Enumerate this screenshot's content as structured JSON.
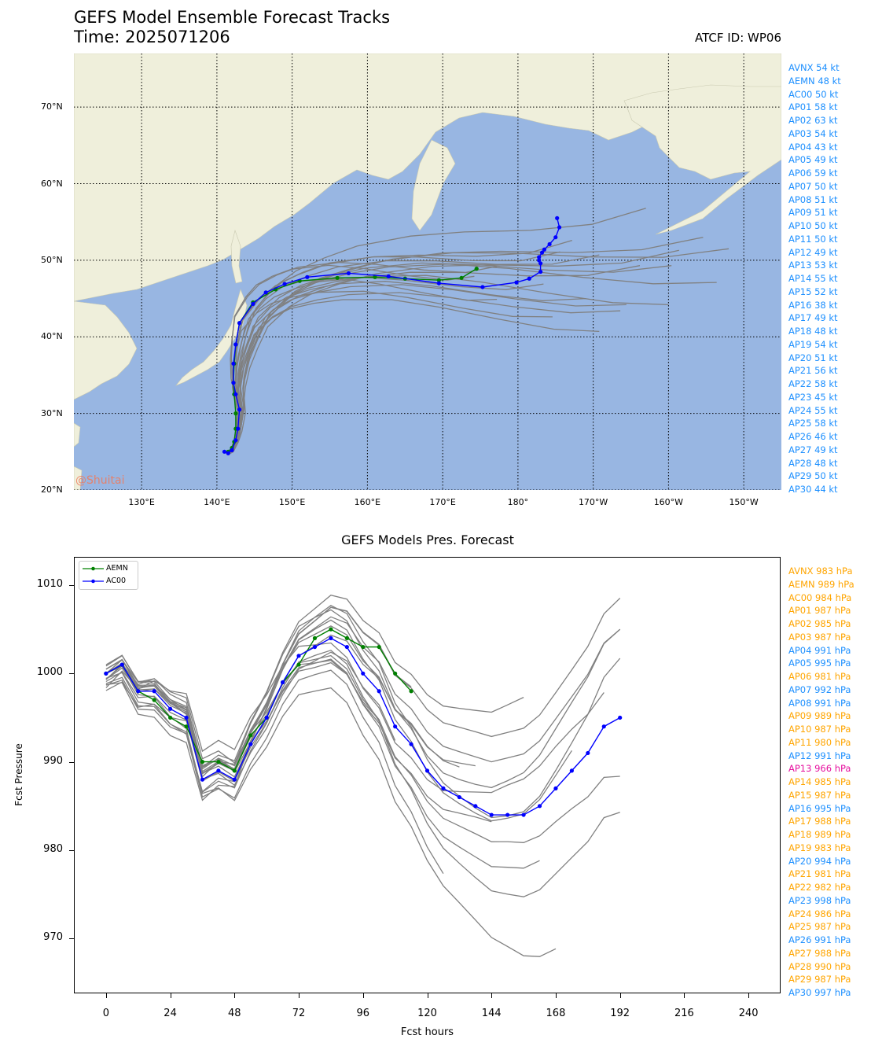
{
  "header": {
    "title": "GEFS Model Ensemble Forecast Tracks",
    "time": "Time: 2025071206",
    "atcf": "ATCF ID: WP06"
  },
  "watermark": "@Shuitai",
  "colors": {
    "ocean": "#98b6e2",
    "land": "#efefdb",
    "member_track": "#808080",
    "aemn": "#008000",
    "ac00": "#0000ff",
    "legend_blue": "#1e90ff",
    "legend_orange": "#ffa500",
    "legend_magenta": "#e6119f"
  },
  "track_map": {
    "lat_labels": [
      "70°N",
      "60°N",
      "50°N",
      "40°N",
      "30°N",
      "20°N"
    ],
    "lon_labels": [
      "130°E",
      "140°E",
      "150°E",
      "160°E",
      "170°E",
      "180°",
      "170°W",
      "160°W",
      "150°W"
    ]
  },
  "wind_legend": [
    {
      "text": "AVNX 54 kt"
    },
    {
      "text": "AEMN 48 kt"
    },
    {
      "text": "AC00 50 kt"
    },
    {
      "text": "AP01 58 kt"
    },
    {
      "text": "AP02 63 kt"
    },
    {
      "text": "AP03 54 kt"
    },
    {
      "text": "AP04 43 kt"
    },
    {
      "text": "AP05 49 kt"
    },
    {
      "text": "AP06 59 kt"
    },
    {
      "text": "AP07 50 kt"
    },
    {
      "text": "AP08 51 kt"
    },
    {
      "text": "AP09 51 kt"
    },
    {
      "text": "AP10 50 kt"
    },
    {
      "text": "AP11 50 kt"
    },
    {
      "text": "AP12 49 kt"
    },
    {
      "text": "AP13 53 kt"
    },
    {
      "text": "AP14 55 kt"
    },
    {
      "text": "AP15 52 kt"
    },
    {
      "text": "AP16 38 kt"
    },
    {
      "text": "AP17 49 kt"
    },
    {
      "text": "AP18 48 kt"
    },
    {
      "text": "AP19 54 kt"
    },
    {
      "text": "AP20 51 kt"
    },
    {
      "text": "AP21 56 kt"
    },
    {
      "text": "AP22 58 kt"
    },
    {
      "text": "AP23 45 kt"
    },
    {
      "text": "AP24 55 kt"
    },
    {
      "text": "AP25 58 kt"
    },
    {
      "text": "AP26 46 kt"
    },
    {
      "text": "AP27 49 kt"
    },
    {
      "text": "AP28 48 kt"
    },
    {
      "text": "AP29 50 kt"
    },
    {
      "text": "AP30 44 kt"
    }
  ],
  "pressure_legend": [
    {
      "text": "AVNX 983 hPa",
      "color": "orange"
    },
    {
      "text": "AEMN 989 hPa",
      "color": "orange"
    },
    {
      "text": "AC00 984 hPa",
      "color": "orange"
    },
    {
      "text": "AP01 987 hPa",
      "color": "orange"
    },
    {
      "text": "AP02 985 hPa",
      "color": "orange"
    },
    {
      "text": "AP03 987 hPa",
      "color": "orange"
    },
    {
      "text": "AP04 991 hPa",
      "color": "blue"
    },
    {
      "text": "AP05 995 hPa",
      "color": "blue"
    },
    {
      "text": "AP06 981 hPa",
      "color": "orange"
    },
    {
      "text": "AP07 992 hPa",
      "color": "blue"
    },
    {
      "text": "AP08 991 hPa",
      "color": "blue"
    },
    {
      "text": "AP09 989 hPa",
      "color": "orange"
    },
    {
      "text": "AP10 987 hPa",
      "color": "orange"
    },
    {
      "text": "AP11 980 hPa",
      "color": "orange"
    },
    {
      "text": "AP12 991 hPa",
      "color": "blue"
    },
    {
      "text": "AP13 966 hPa",
      "color": "magenta"
    },
    {
      "text": "AP14 985 hPa",
      "color": "orange"
    },
    {
      "text": "AP15 987 hPa",
      "color": "orange"
    },
    {
      "text": "AP16 995 hPa",
      "color": "blue"
    },
    {
      "text": "AP17 988 hPa",
      "color": "orange"
    },
    {
      "text": "AP18 989 hPa",
      "color": "orange"
    },
    {
      "text": "AP19 983 hPa",
      "color": "orange"
    },
    {
      "text": "AP20 994 hPa",
      "color": "blue"
    },
    {
      "text": "AP21 981 hPa",
      "color": "orange"
    },
    {
      "text": "AP22 982 hPa",
      "color": "orange"
    },
    {
      "text": "AP23 998 hPa",
      "color": "blue"
    },
    {
      "text": "AP24 986 hPa",
      "color": "orange"
    },
    {
      "text": "AP25 987 hPa",
      "color": "orange"
    },
    {
      "text": "AP26 991 hPa",
      "color": "blue"
    },
    {
      "text": "AP27 988 hPa",
      "color": "orange"
    },
    {
      "text": "AP28 990 hPa",
      "color": "orange"
    },
    {
      "text": "AP29 987 hPa",
      "color": "orange"
    },
    {
      "text": "AP30 997 hPa",
      "color": "blue"
    }
  ],
  "chart_data": [
    {
      "type": "line",
      "title": "GEFS Model Ensemble Forecast Tracks",
      "subtitle": "Time: 2025071206",
      "xlim": [
        121,
        215
      ],
      "ylim": [
        20,
        77
      ],
      "x_ticks": [
        130,
        140,
        150,
        160,
        170,
        180,
        190,
        200,
        210
      ],
      "y_ticks": [
        20,
        30,
        40,
        50,
        60,
        70
      ],
      "grid": true,
      "series": [
        {
          "name": "AEMN",
          "lon": [
            141.5,
            142.0,
            142.3,
            142.5,
            142.5,
            142.3,
            142.2,
            142.3,
            142.5,
            143.0,
            144.8,
            147.8,
            151.0,
            156.0,
            161.0,
            165.0,
            169.5,
            172.5,
            174.5
          ],
          "lat": [
            25.0,
            25.5,
            26.3,
            28.0,
            30.0,
            32.5,
            34.0,
            36.5,
            39.0,
            41.8,
            44.5,
            46.2,
            47.3,
            47.7,
            47.8,
            47.6,
            47.4,
            47.7,
            48.9
          ]
        },
        {
          "name": "AC00",
          "lon": [
            141.0,
            141.5,
            142.0,
            142.5,
            142.8,
            143.0,
            142.5,
            142.2,
            142.2,
            142.5,
            143.0,
            144.8,
            146.5,
            149.0,
            152.0,
            157.5,
            162.8,
            169.5,
            175.3,
            179.8,
            181.5,
            183.0,
            183.0,
            182.8,
            182.8,
            183.2,
            183.5,
            184.2,
            185.0,
            185.5,
            185.2
          ],
          "lat": [
            25.0,
            24.8,
            25.2,
            26.5,
            28.0,
            30.5,
            32.5,
            34.0,
            36.5,
            39.0,
            41.8,
            44.3,
            45.8,
            46.9,
            47.8,
            48.3,
            47.9,
            47.0,
            46.5,
            47.1,
            47.6,
            48.5,
            49.6,
            50.0,
            50.4,
            51.0,
            51.4,
            52.1,
            53.0,
            54.3,
            55.5
          ]
        }
      ]
    },
    {
      "type": "line",
      "title": "GEFS Models Pres. Forecast",
      "xlabel": "Fcst hours",
      "ylabel": "Fcst Pressure",
      "xlim": [
        -12,
        252
      ],
      "ylim": [
        963.8,
        1013.2
      ],
      "x_ticks": [
        0,
        24,
        48,
        72,
        96,
        120,
        144,
        168,
        192,
        216,
        240
      ],
      "y_ticks": [
        970,
        980,
        990,
        1000,
        1010
      ],
      "legend": "upper left",
      "series": [
        {
          "name": "AEMN",
          "x": [
            0,
            6,
            12,
            18,
            24,
            30,
            36,
            42,
            48,
            54,
            60,
            66,
            72,
            78,
            84,
            90,
            96,
            102,
            108,
            114
          ],
          "values": [
            1000,
            1001,
            998,
            997,
            995,
            994,
            990,
            990,
            989,
            993,
            995,
            999,
            1001,
            1004,
            1005,
            1004,
            1003,
            1003,
            1000,
            998
          ]
        },
        {
          "name": "AC00",
          "x": [
            0,
            6,
            12,
            18,
            24,
            30,
            36,
            42,
            48,
            54,
            60,
            66,
            72,
            78,
            84,
            90,
            96,
            102,
            108,
            114,
            120,
            126,
            132,
            138,
            144,
            150,
            156,
            162,
            168,
            174,
            180,
            186,
            192
          ],
          "values": [
            1000,
            1001,
            998,
            998,
            996,
            995,
            988,
            989,
            988,
            992,
            995,
            999,
            1002,
            1003,
            1004,
            1003,
            1000,
            998,
            994,
            992,
            989,
            987,
            986,
            985,
            984,
            984,
            984,
            985,
            987,
            989,
            991,
            994,
            995
          ]
        }
      ]
    }
  ]
}
